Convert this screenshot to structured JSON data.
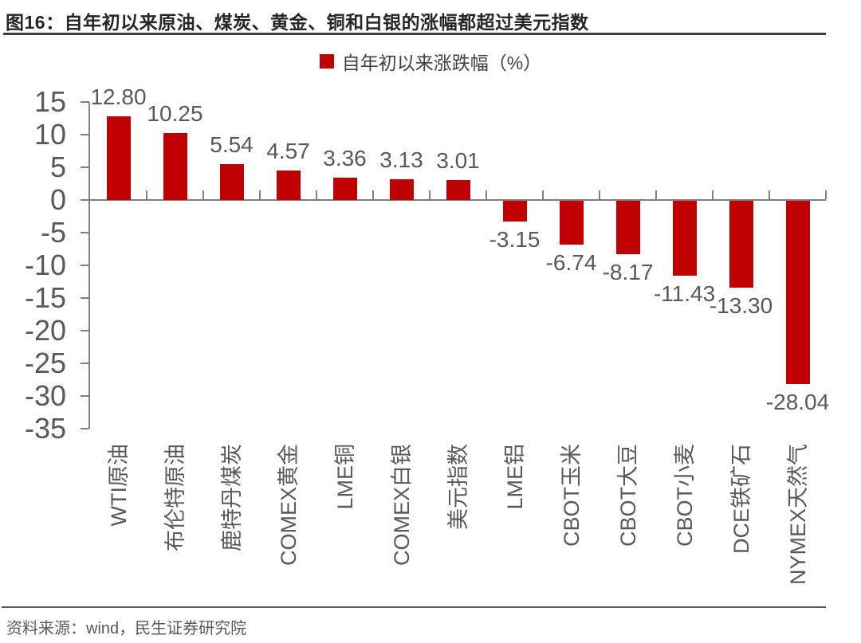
{
  "header": {
    "title": "图16：自年初以来原油、煤炭、黄金、铜和白银的涨幅都超过美元指数"
  },
  "legend": {
    "label": "自年初以来涨跌幅（%）",
    "swatch_color": "#c00000"
  },
  "chart_data": {
    "type": "bar",
    "title": "图16：自年初以来原油、煤炭、黄金、铜和白银的涨幅都超过美元指数",
    "legend_entries": [
      "自年初以来涨跌幅（%）"
    ],
    "legend_position": "top-center",
    "categories": [
      "WTI原油",
      "布伦特原油",
      "鹿特丹煤炭",
      "COMEX黄金",
      "LME铜",
      "COMEX白银",
      "美元指数",
      "LME铝",
      "CBOT玉米",
      "CBOT大豆",
      "CBOT小麦",
      "DCE铁矿石",
      "NYMEX天然气"
    ],
    "values": [
      12.8,
      10.25,
      5.54,
      4.57,
      3.36,
      3.13,
      3.01,
      -3.15,
      -6.74,
      -8.17,
      -11.43,
      -13.3,
      -28.04
    ],
    "value_labels": [
      "12.80",
      "10.25",
      "5.54",
      "4.57",
      "3.36",
      "3.13",
      "3.01",
      "-3.15",
      "-6.74",
      "-8.17",
      "-11.43",
      "-13.30",
      "-28.04"
    ],
    "xlabel": "",
    "ylabel": "",
    "ylim": [
      -35,
      15
    ],
    "yticks": [
      15,
      10,
      5,
      0,
      -5,
      -10,
      -15,
      -20,
      -25,
      -30,
      -35
    ],
    "grid": false,
    "bar_color": "#c00000",
    "axis_color": "#808080",
    "label_color": "#595959"
  },
  "footer": {
    "source": "资料来源：wind，民生证券研究院"
  }
}
